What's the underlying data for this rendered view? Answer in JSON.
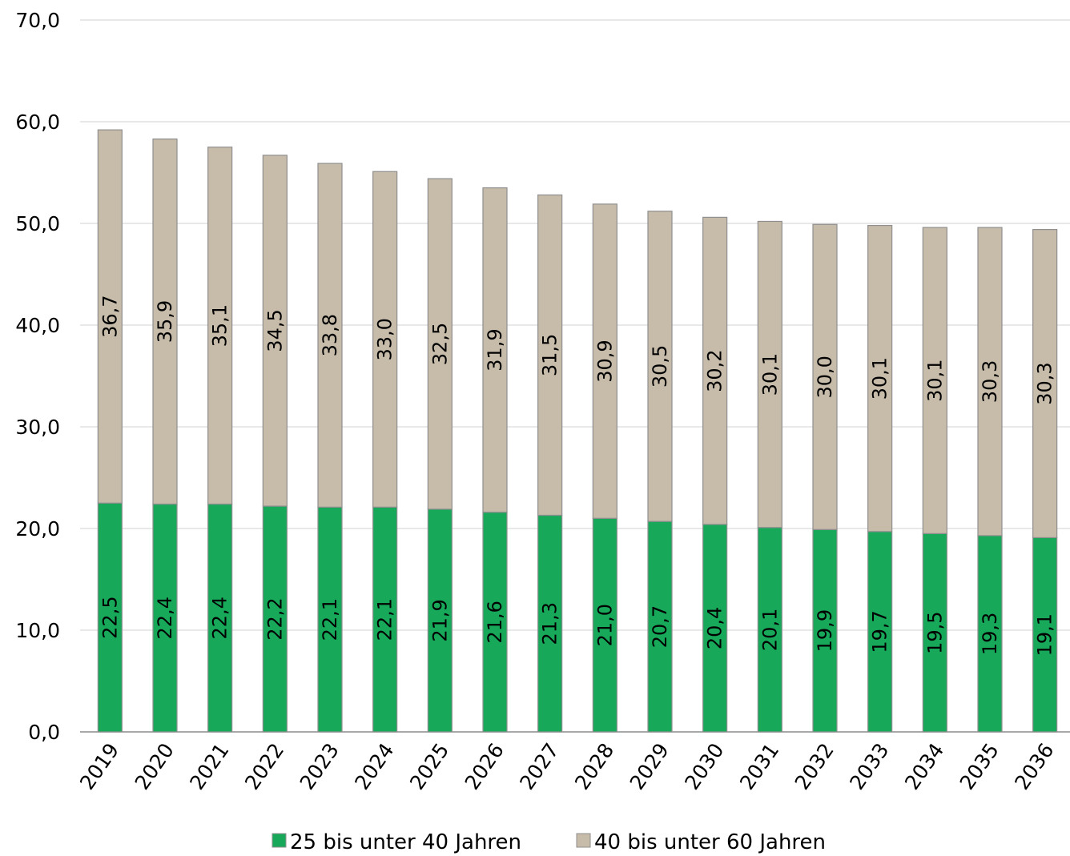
{
  "chart_data": {
    "type": "bar",
    "stacked": true,
    "categories": [
      "2019",
      "2020",
      "2021",
      "2022",
      "2023",
      "2024",
      "2025",
      "2026",
      "2027",
      "2028",
      "2029",
      "2030",
      "2031",
      "2032",
      "2033",
      "2034",
      "2035",
      "2036"
    ],
    "series": [
      {
        "name": "25 bis unter 40 Jahren",
        "color": "#17a85a",
        "values": [
          22.5,
          22.4,
          22.4,
          22.2,
          22.1,
          22.1,
          21.9,
          21.6,
          21.3,
          21.0,
          20.7,
          20.4,
          20.1,
          19.9,
          19.7,
          19.5,
          19.3,
          19.1
        ],
        "labels": [
          "22,5",
          "22,4",
          "22,4",
          "22,2",
          "22,1",
          "22,1",
          "21,9",
          "21,6",
          "21,3",
          "21,0",
          "20,7",
          "20,4",
          "20,1",
          "19,9",
          "19,7",
          "19,5",
          "19,3",
          "19,1"
        ]
      },
      {
        "name": "40 bis unter 60 Jahren",
        "color": "#c7bba9",
        "values": [
          36.7,
          35.9,
          35.1,
          34.5,
          33.8,
          33.0,
          32.5,
          31.9,
          31.5,
          30.9,
          30.5,
          30.2,
          30.1,
          30.0,
          30.1,
          30.1,
          30.3,
          30.3
        ],
        "labels": [
          "36,7",
          "35,9",
          "35,1",
          "34,5",
          "33,8",
          "33,0",
          "32,5",
          "31,9",
          "31,5",
          "30,9",
          "30,5",
          "30,2",
          "30,1",
          "30,0",
          "30,1",
          "30,1",
          "30,3",
          "30,3"
        ]
      }
    ],
    "yticks": [
      0,
      10,
      20,
      30,
      40,
      50,
      60,
      70
    ],
    "ytick_labels": [
      "0,0",
      "10,0",
      "20,0",
      "30,0",
      "40,0",
      "50,0",
      "60,0",
      "70,0"
    ],
    "ylim": [
      0,
      70
    ],
    "grid": true,
    "legend": "bottom",
    "data_labels": "rotated-vertical"
  }
}
